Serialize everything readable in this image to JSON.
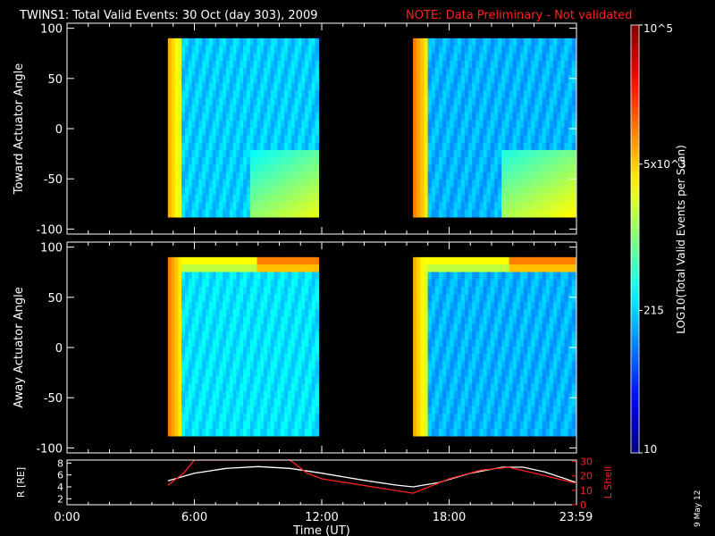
{
  "header": {
    "title": "TWINS1: Total Valid Events: 30 Oct (day 303), 2009",
    "note": "NOTE: Data Preliminary - Not validated"
  },
  "footer": {
    "date_stamp": "9 May 12"
  },
  "colors": {
    "background": "#000000",
    "note": "#ff2020",
    "axes": "#ffffff",
    "r_line": "#ffffff",
    "lshell_line": "#ff2020"
  },
  "colorbar": {
    "label": "LOG10(Total Valid Events per Scan)",
    "scale": "log",
    "range": [
      10,
      100000
    ],
    "tick_labels": [
      "10",
      "215",
      "5x10^3",
      "10^5"
    ],
    "tick_values": [
      10,
      215,
      5000,
      100000
    ],
    "colormap": [
      "#00007f",
      "#0000ff",
      "#0080ff",
      "#00ffff",
      "#80ff80",
      "#ffff00",
      "#ff8000",
      "#ff0000",
      "#7f0000"
    ]
  },
  "chart_data": [
    {
      "type": "heatmap",
      "title": "",
      "ylabel": "Toward Actuator Angle",
      "ylim": [
        -105,
        105
      ],
      "yticks": [
        "-100",
        "-50",
        "0",
        "50",
        "100"
      ],
      "xlim": [
        0,
        24
      ],
      "data_blocks": [
        {
          "start_hour": 4.75,
          "end_hour": 11.85,
          "angle_range": [
            -88,
            90
          ],
          "edge_log": 3.8,
          "bulk_log": 2.3,
          "corner_log": 3.4
        },
        {
          "start_hour": 16.3,
          "end_hour": 23.95,
          "angle_range": [
            -88,
            90
          ],
          "edge_log": 4.0,
          "bulk_log": 2.2,
          "corner_log": 3.5
        }
      ]
    },
    {
      "type": "heatmap",
      "title": "",
      "ylabel": "Away Actuator Angle",
      "ylim": [
        -105,
        105
      ],
      "yticks": [
        "-100",
        "-50",
        "0",
        "50",
        "100"
      ],
      "xlim": [
        0,
        24
      ],
      "data_blocks": [
        {
          "start_hour": 4.75,
          "end_hour": 11.85,
          "angle_range": [
            -88,
            90
          ],
          "edge_log": 4.0,
          "bulk_log": 2.4,
          "top_log": 4.0
        },
        {
          "start_hour": 16.3,
          "end_hour": 23.95,
          "angle_range": [
            -88,
            90
          ],
          "edge_log": 3.8,
          "bulk_log": 2.2,
          "top_log": 4.0
        }
      ]
    },
    {
      "type": "line",
      "xlabel": "Time (UT)",
      "xlim": [
        0,
        24
      ],
      "xticks": [
        {
          "value": 0,
          "label": "0:00"
        },
        {
          "value": 6,
          "label": "6:00"
        },
        {
          "value": 12,
          "label": "12:00"
        },
        {
          "value": 18,
          "label": "18:00"
        },
        {
          "value": 23.98,
          "label": "23:59"
        }
      ],
      "ylabel_left": "R [RE]",
      "ylim_left": [
        1,
        8.5
      ],
      "yticks_left": [
        "2",
        "4",
        "6",
        "8"
      ],
      "ylabel_right": "L Shell",
      "ylim_right": [
        0,
        31
      ],
      "yticks_right": [
        "0",
        "10",
        "20",
        "30"
      ],
      "series": [
        {
          "axis": "left",
          "x": [
            4.75,
            6.0,
            7.5,
            9.0,
            10.5,
            12.0,
            14.0,
            15.5,
            16.3,
            17.5,
            19.0,
            20.5,
            21.5,
            22.5,
            23.95
          ],
          "y": [
            5.0,
            6.3,
            7.1,
            7.4,
            7.1,
            6.3,
            5.1,
            4.3,
            4.0,
            4.7,
            6.3,
            7.3,
            7.3,
            6.5,
            4.8
          ]
        },
        {
          "axis": "right",
          "x": [
            4.75,
            5.5,
            6.0,
            10.5,
            11.3,
            12.0,
            16.3,
            18.0,
            19.5,
            20.8,
            22.0,
            23.95
          ],
          "y": [
            13.5,
            22,
            31,
            31,
            22,
            18,
            8,
            18,
            24,
            26,
            22,
            15
          ]
        }
      ]
    }
  ]
}
